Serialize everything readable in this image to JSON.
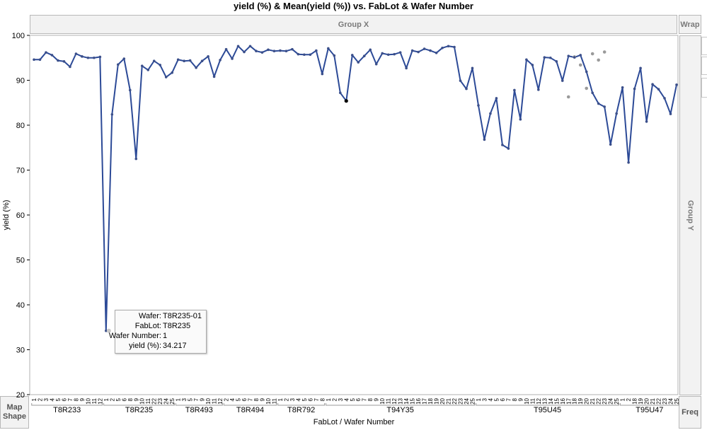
{
  "title": "yield (%) & Mean(yield (%)) vs. FabLot & Wafer Number",
  "zones": {
    "group_x": "Group X",
    "wrap": "Wrap",
    "group_y": "Group Y",
    "map_shape": "Map Shape",
    "freq": "Freq"
  },
  "tooltip": {
    "wafer_label": "Wafer:",
    "wafer_value": "T8R235-01",
    "fablot_label": "FabLot:",
    "fablot_value": "T8R235",
    "wafernum_label": "Wafer Number:",
    "wafernum_value": "1",
    "yield_label": "yield (%):",
    "yield_value": "34.217"
  },
  "colors": {
    "line": "#2c4a97",
    "mean_point": "#3b4f8a",
    "raw_point": "#9a9a9a",
    "selected_point": "#000000"
  },
  "chart_data": {
    "type": "line",
    "title": "yield (%) & Mean(yield (%)) vs. FabLot & Wafer Number",
    "xlabel": "FabLot / Wafer Number",
    "ylabel": "yield (%)",
    "ylim": [
      20,
      100
    ],
    "yticks": [
      20,
      30,
      40,
      50,
      60,
      70,
      80,
      90,
      100
    ],
    "grid": false,
    "series": [
      {
        "name": "Mean(yield (%))"
      }
    ],
    "groups": [
      {
        "lot": "T8R233",
        "wafers": [
          "1",
          "2",
          "3",
          "4",
          "5",
          "6",
          "7",
          "8",
          "9",
          "10",
          "11",
          "12"
        ],
        "values": [
          94.6,
          94.6,
          96.2,
          95.6,
          94.4,
          94.2,
          93.0,
          95.9,
          95.3,
          95.0,
          95.0,
          95.2
        ]
      },
      {
        "lot": "T8R235",
        "wafers": [
          "1",
          "2",
          "5",
          "6",
          "8",
          "9",
          "10",
          "11",
          "22",
          "23",
          "24",
          "25"
        ],
        "values": [
          34.217,
          82.4,
          93.5,
          94.8,
          87.8,
          72.5,
          93.2,
          92.3,
          94.3,
          93.4,
          90.7,
          91.7
        ]
      },
      {
        "lot": "T8R493",
        "wafers": [
          "1",
          "3",
          "5",
          "7",
          "9",
          "10",
          "11",
          "12"
        ],
        "values": [
          94.6,
          94.3,
          94.4,
          92.8,
          94.3,
          95.3,
          90.8,
          94.5
        ]
      },
      {
        "lot": "T8R494",
        "wafers": [
          "2",
          "4",
          "5",
          "6",
          "7",
          "8",
          "9",
          "10",
          "11"
        ],
        "values": [
          96.9,
          94.8,
          97.6,
          96.3,
          97.6,
          96.5,
          96.2,
          96.8,
          96.5
        ]
      },
      {
        "lot": "T8R792",
        "wafers": [
          "1",
          "2",
          "3",
          "4",
          "5",
          "6",
          "7",
          "8"
        ],
        "values": [
          96.6,
          96.5,
          96.9,
          95.8,
          95.7,
          95.7,
          96.6,
          91.4
        ]
      },
      {
        "lot": "T94Y35",
        "wafers": [
          "1",
          "2",
          "3",
          "4",
          "5",
          "6",
          "7",
          "8",
          "9",
          "10",
          "11",
          "12",
          "13",
          "14",
          "15",
          "16",
          "17",
          "18",
          "19",
          "20",
          "21",
          "22",
          "23",
          "24",
          "25"
        ],
        "values": [
          97.1,
          95.5,
          87.2,
          85.4,
          95.6,
          94.0,
          95.4,
          96.8,
          93.6,
          96.0,
          95.7,
          95.8,
          96.2,
          92.7,
          96.6,
          96.3,
          97.0,
          96.6,
          96.1,
          97.2,
          97.6,
          97.4,
          89.9,
          88.1,
          92.7
        ]
      },
      {
        "lot": "T95U45",
        "wafers": [
          "1",
          "3",
          "4",
          "5",
          "6",
          "7",
          "8",
          "9",
          "10",
          "11",
          "12",
          "13",
          "14",
          "15",
          "16",
          "17",
          "18",
          "19",
          "20",
          "21",
          "22",
          "23",
          "24",
          "25"
        ],
        "values": [
          84.4,
          76.8,
          82.6,
          86.0,
          75.6,
          74.8,
          87.8,
          81.3,
          94.6,
          93.4,
          87.9,
          95.1,
          95.0,
          94.2,
          89.9,
          95.4,
          95.1,
          95.6,
          91.9,
          87.2,
          84.8,
          84.1,
          75.7,
          82.6
        ]
      },
      {
        "lot": "T95U47",
        "wafers": [
          "1",
          "2",
          "18",
          "19",
          "20",
          "21",
          "22",
          "23",
          "24",
          "25"
        ],
        "values": [
          88.4,
          71.7,
          88.1,
          92.7,
          80.8,
          89.1,
          88.0,
          86.0,
          82.5,
          89.0
        ]
      }
    ],
    "raw_points": [
      {
        "lot": "T95U45",
        "wafer": "17",
        "value": 86.3
      },
      {
        "lot": "T95U45",
        "wafer": "18",
        "value": 95.2
      },
      {
        "lot": "T95U45",
        "wafer": "19",
        "value": 93.4
      },
      {
        "lot": "T95U45",
        "wafer": "20",
        "value": 88.2
      },
      {
        "lot": "T95U45",
        "wafer": "21",
        "value": 95.9
      },
      {
        "lot": "T95U45",
        "wafer": "22",
        "value": 94.5
      },
      {
        "lot": "T95U45",
        "wafer": "23",
        "value": 96.3
      }
    ],
    "selected_point": {
      "lot": "T94Y35",
      "wafer": "4",
      "value": 85.4
    },
    "labeled_point": {
      "lot": "T8R235",
      "wafer": "1",
      "value": 34.217
    }
  }
}
